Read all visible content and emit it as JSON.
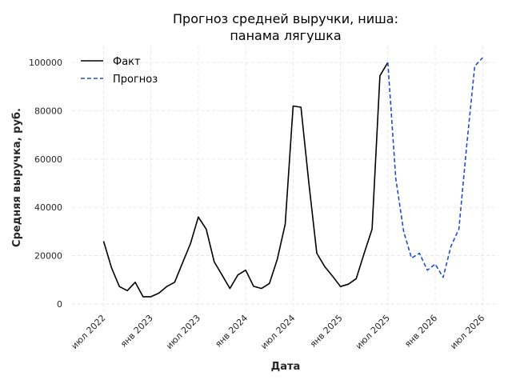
{
  "chart_data": {
    "type": "line",
    "title_line1": "Прогноз средней выручки, ниша:",
    "title_line2": "панама лягушка",
    "xlabel": "Дата",
    "ylabel": "Средняя выручка, руб.",
    "ylim": [
      -3000,
      107000
    ],
    "y_ticks": [
      0,
      20000,
      40000,
      60000,
      80000,
      100000
    ],
    "x_ticks": [
      {
        "label": "июл 2022",
        "month": "2022-07"
      },
      {
        "label": "янв 2023",
        "month": "2023-01"
      },
      {
        "label": "июл 2023",
        "month": "2023-07"
      },
      {
        "label": "янв 2024",
        "month": "2024-01"
      },
      {
        "label": "июл 2024",
        "month": "2024-07"
      },
      {
        "label": "янв 2025",
        "month": "2025-01"
      },
      {
        "label": "июл 2025",
        "month": "2025-07"
      },
      {
        "label": "янв 2026",
        "month": "2026-01"
      },
      {
        "label": "июл 2026",
        "month": "2026-07"
      }
    ],
    "grid": true,
    "legend_position": "top-left",
    "series": [
      {
        "name": "Факт",
        "color": "#000000",
        "style": "solid",
        "x": [
          "2022-07",
          "2022-08",
          "2022-09",
          "2022-10",
          "2022-11",
          "2022-12",
          "2023-01",
          "2023-02",
          "2023-03",
          "2023-04",
          "2023-05",
          "2023-06",
          "2023-07",
          "2023-08",
          "2023-09",
          "2023-10",
          "2023-11",
          "2023-12",
          "2024-01",
          "2024-02",
          "2024-03",
          "2024-04",
          "2024-05",
          "2024-06",
          "2024-07",
          "2024-08",
          "2024-09",
          "2024-10",
          "2024-11",
          "2024-12",
          "2025-01",
          "2025-02",
          "2025-03",
          "2025-04",
          "2025-05",
          "2025-06",
          "2025-07"
        ],
        "y": [
          26000,
          15000,
          7200,
          5500,
          9000,
          3000,
          3000,
          4500,
          7200,
          9000,
          17000,
          25000,
          36000,
          31000,
          17500,
          12000,
          6400,
          12000,
          14000,
          7300,
          6400,
          8500,
          18500,
          33000,
          82000,
          81500,
          50000,
          21000,
          15500,
          11500,
          7200,
          8200,
          10500,
          21000,
          31000,
          94500,
          100000
        ]
      },
      {
        "name": "Прогноз",
        "color": "#1f4fcc",
        "style": "dashed",
        "x": [
          "2025-07",
          "2025-08",
          "2025-09",
          "2025-10",
          "2025-11",
          "2025-12",
          "2026-01",
          "2026-02",
          "2026-03",
          "2026-04",
          "2026-05",
          "2026-06",
          "2026-07"
        ],
        "y": [
          100000,
          52000,
          30000,
          19000,
          21000,
          14000,
          16500,
          11000,
          24000,
          31000,
          66000,
          98500,
          102000
        ]
      }
    ]
  }
}
